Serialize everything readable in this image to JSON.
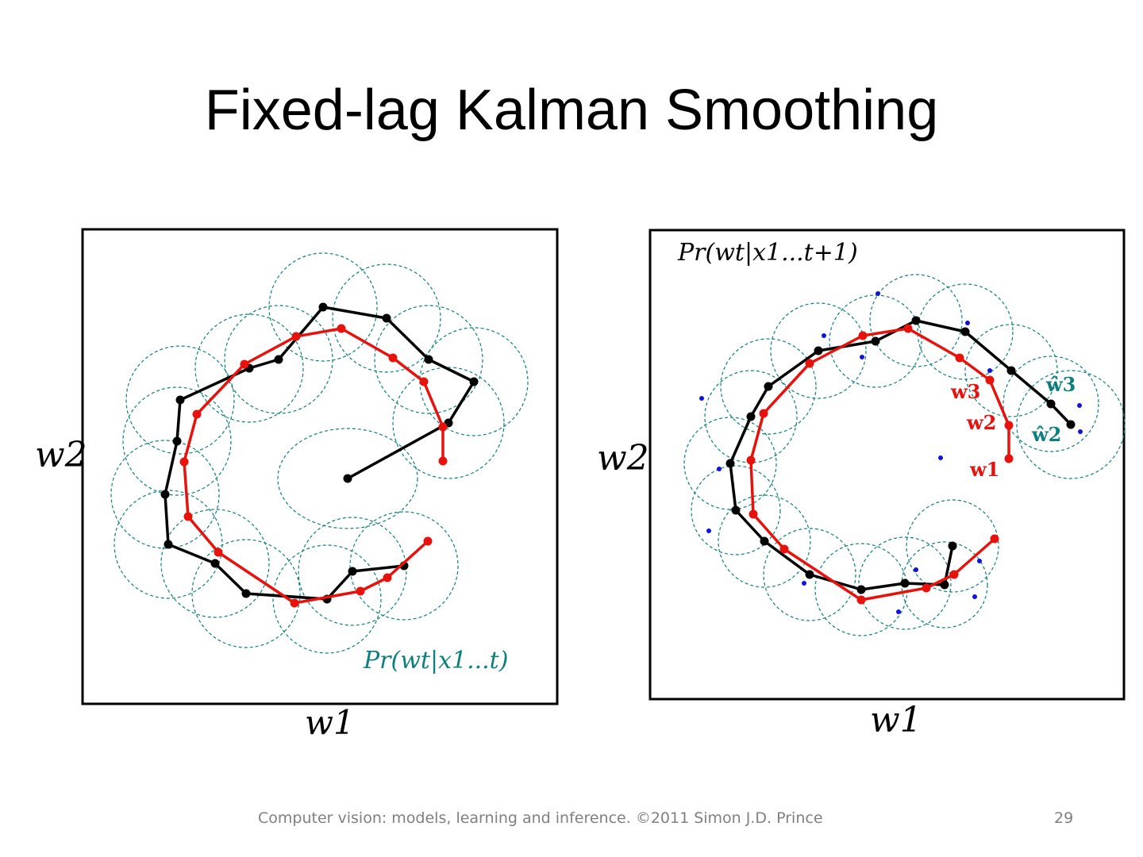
{
  "slide": {
    "title": "Fixed-lag Kalman Smoothing",
    "footer": "Computer vision: models, learning and inference.  ©2011 Simon J.D. Prince",
    "page_number": "29"
  },
  "left_plot": {
    "xlabel": "w1",
    "ylabel": "w2",
    "caption": "Pr(wt|x1...t)"
  },
  "right_plot": {
    "xlabel": "w1",
    "ylabel": "w2",
    "caption": "Pr(wt|x1...t+1)",
    "label_w1": "w1",
    "label_w2": "w2",
    "label_w3": "w3",
    "label_w2_hat": "ŵ2",
    "label_w3_hat": "ŵ3"
  },
  "colors": {
    "filtered": "#0e7f7f",
    "smoothed": "#e8120c",
    "observations": "#1010e0",
    "frame": "#000000"
  }
}
